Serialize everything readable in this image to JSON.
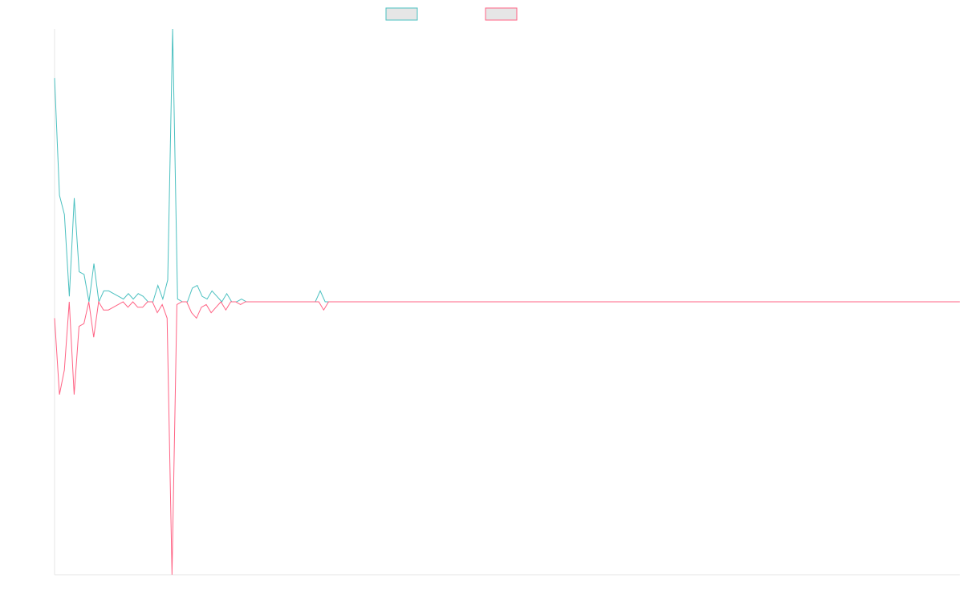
{
  "chart_data": {
    "type": "line",
    "title": "",
    "xlabel": "",
    "ylabel": "",
    "ylim": [
      -1,
      1
    ],
    "grid": false,
    "legend_position": "top-center",
    "series": [
      {
        "label": "",
        "color": "#4bc0c0",
        "values": [
          0.82,
          0.39,
          0.32,
          0.02,
          0.38,
          0.11,
          0.1,
          0,
          0.14,
          0,
          0.04,
          0.04,
          0.03,
          0.02,
          0.01,
          0.03,
          0.01,
          0.03,
          0.02,
          0,
          0,
          0.06,
          0.01,
          0.08,
          1.0,
          0.01,
          0,
          0,
          0.05,
          0.06,
          0.02,
          0.01,
          0.04,
          0.02,
          0,
          0.03,
          0,
          0,
          0.01,
          0,
          0,
          0,
          0,
          0,
          0,
          0,
          0,
          0,
          0,
          0,
          0,
          0,
          0,
          0,
          0.04,
          0,
          0,
          0,
          0,
          0,
          0,
          0,
          0,
          0,
          0,
          0,
          0,
          0,
          0,
          0,
          0,
          0,
          0,
          0,
          0,
          0,
          0,
          0,
          0,
          0,
          0,
          0,
          0,
          0,
          0,
          0,
          0,
          0,
          0,
          0,
          0,
          0,
          0,
          0,
          0,
          0,
          0,
          0,
          0,
          0,
          0,
          0,
          0,
          0,
          0,
          0,
          0,
          0,
          0,
          0,
          0,
          0,
          0,
          0,
          0,
          0,
          0,
          0,
          0,
          0,
          0,
          0,
          0,
          0,
          0,
          0,
          0,
          0,
          0,
          0,
          0,
          0,
          0,
          0,
          0,
          0,
          0,
          0,
          0,
          0,
          0,
          0,
          0,
          0,
          0,
          0,
          0,
          0,
          0,
          0,
          0,
          0,
          0,
          0,
          0,
          0,
          0,
          0,
          0,
          0,
          0,
          0,
          0,
          0,
          0,
          0,
          0,
          0,
          0,
          0,
          0,
          0,
          0,
          0,
          0,
          0,
          0,
          0,
          0,
          0,
          0,
          0,
          0,
          0,
          0
        ]
      },
      {
        "label": "",
        "color": "#ff6384",
        "values": [
          -0.06,
          -0.34,
          -0.25,
          0,
          -0.34,
          -0.09,
          -0.08,
          0,
          -0.13,
          0,
          -0.03,
          -0.03,
          -0.02,
          -0.01,
          0,
          -0.02,
          0,
          -0.02,
          -0.02,
          0,
          0,
          -0.04,
          -0.01,
          -0.06,
          -1.0,
          -0.01,
          0,
          0,
          -0.04,
          -0.06,
          -0.02,
          -0.01,
          -0.04,
          -0.02,
          0,
          -0.03,
          0,
          0,
          -0.01,
          0,
          0,
          0,
          0,
          0,
          0,
          0,
          0,
          0,
          0,
          0,
          0,
          0,
          0,
          0,
          0,
          -0.03,
          0,
          0,
          0,
          0,
          0,
          0,
          0,
          0,
          0,
          0,
          0,
          0,
          0,
          0,
          0,
          0,
          0,
          0,
          0,
          0,
          0,
          0,
          0,
          0,
          0,
          0,
          0,
          0,
          0,
          0,
          0,
          0,
          0,
          0,
          0,
          0,
          0,
          0,
          0,
          0,
          0,
          0,
          0,
          0,
          0,
          0,
          0,
          0,
          0,
          0,
          0,
          0,
          0,
          0,
          0,
          0,
          0,
          0,
          0,
          0,
          0,
          0,
          0,
          0,
          0,
          0,
          0,
          0,
          0,
          0,
          0,
          0,
          0,
          0,
          0,
          0,
          0,
          0,
          0,
          0,
          0,
          0,
          0,
          0,
          0,
          0,
          0,
          0,
          0,
          0,
          0,
          0,
          0,
          0,
          0,
          0,
          0,
          0,
          0,
          0,
          0,
          0,
          0,
          0,
          0,
          0,
          0,
          0,
          0,
          0,
          0,
          0,
          0,
          0,
          0,
          0,
          0,
          0,
          0,
          0,
          0,
          0,
          0,
          0,
          0,
          0,
          0,
          0,
          0,
          0
        ]
      }
    ]
  }
}
